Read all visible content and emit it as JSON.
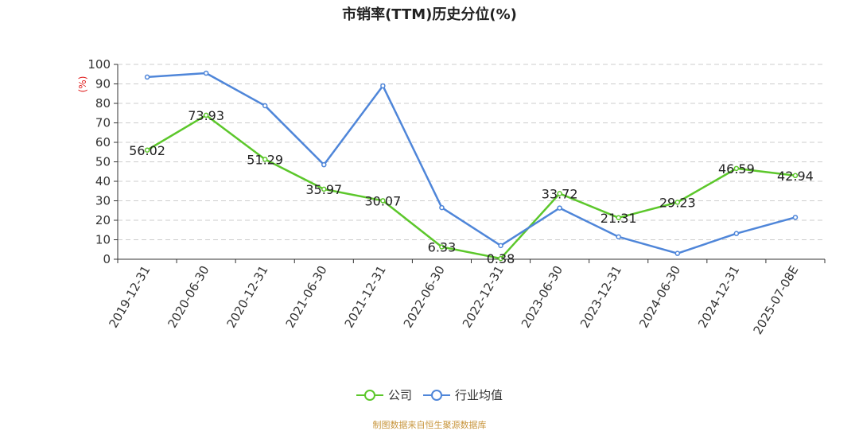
{
  "chart_data": {
    "type": "line",
    "title": "市销率(TTM)历史分位(%)",
    "ylabel": "(%)",
    "xlabel": "",
    "ylim": [
      0,
      100
    ],
    "yticks": [
      0,
      10,
      20,
      30,
      40,
      50,
      60,
      70,
      80,
      90,
      100
    ],
    "grid": true,
    "legend_position": "bottom",
    "categories": [
      "2019-12-31",
      "2020-06-30",
      "2020-12-31",
      "2021-06-30",
      "2021-12-31",
      "2022-06-30",
      "2022-12-31",
      "2023-06-30",
      "2023-12-31",
      "2024-06-30",
      "2024-12-31",
      "2025-07-08E"
    ],
    "series": [
      {
        "name": "公司",
        "color": "#5cc72b",
        "values": [
          56.02,
          73.93,
          51.29,
          35.97,
          30.07,
          6.33,
          0.38,
          33.72,
          21.31,
          29.23,
          46.59,
          42.94
        ],
        "data_labels": [
          "56.02",
          "73.93",
          "51.29",
          "35.97",
          "30.07",
          "6.33",
          "0.38",
          "33.72",
          "21.31",
          "29.23",
          "46.59",
          "42.94"
        ]
      },
      {
        "name": "行业均值",
        "color": "#4f86d9",
        "values": [
          93.5,
          95.5,
          78.8,
          48.5,
          89.0,
          26.5,
          7.0,
          26.3,
          11.5,
          3.0,
          13.2,
          21.5
        ]
      }
    ]
  },
  "legend": {
    "company": "公司",
    "industry": "行业均值"
  },
  "source": "制图数据来自恒生聚源数据库",
  "colors": {
    "ylabel": "#e02020",
    "source": "#c8963e"
  }
}
